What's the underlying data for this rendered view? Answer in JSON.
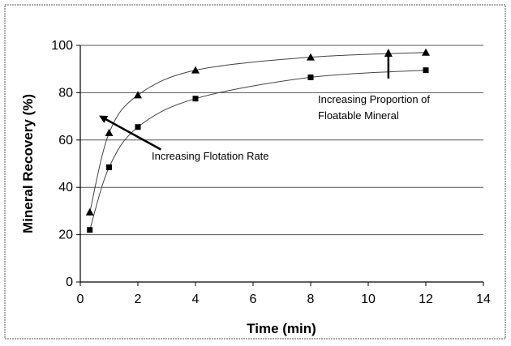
{
  "chart_data": {
    "type": "scatter",
    "title": "",
    "xlabel": "Time (min)",
    "ylabel": "Mineral Recovery (%)",
    "xlim": [
      0,
      14
    ],
    "ylim": [
      0,
      100
    ],
    "x_ticks": [
      "0",
      "2",
      "4",
      "6",
      "8",
      "10",
      "12",
      "14"
    ],
    "y_ticks": [
      "0",
      "20",
      "40",
      "60",
      "80",
      "100"
    ],
    "grid": "horizontal",
    "legend": "none",
    "series": [
      {
        "marker": "triangle",
        "color": "#000000",
        "x": [
          0.33,
          1,
          2,
          4,
          8,
          12
        ],
        "y": [
          29.5,
          63,
          79,
          89.5,
          95,
          97
        ]
      },
      {
        "marker": "square",
        "color": "#000000",
        "x": [
          0.33,
          1,
          2,
          4,
          8,
          12
        ],
        "y": [
          22,
          48.5,
          65.5,
          77.5,
          86.5,
          89.5
        ]
      }
    ],
    "annotations": [
      {
        "text": "Increasing Flotation Rate",
        "arrow_from": [
          2.8,
          56
        ],
        "arrow_to": [
          0.7,
          70
        ]
      },
      {
        "lines": [
          "Increasing Proportion of",
          "Floatable Mineral"
        ],
        "arrow_from": [
          10.7,
          86
        ],
        "arrow_to": [
          10.7,
          100
        ]
      }
    ]
  }
}
